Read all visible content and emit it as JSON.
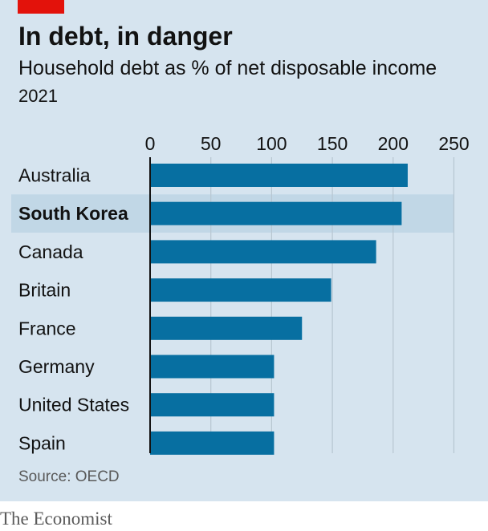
{
  "header": {
    "title": "In debt, in danger",
    "subtitle": "Household debt as % of net disposable income",
    "year": "2021"
  },
  "footer": {
    "source": "Source: OECD",
    "brand": "The Economist"
  },
  "colors": {
    "background": "#d6e4ef",
    "bar": "#076fa1",
    "highlight_band": "#c1d7e6",
    "accent_tag": "#e3120b",
    "gridline": "#b7c6d1",
    "axis": "#121212"
  },
  "chart_data": {
    "type": "bar",
    "orientation": "horizontal",
    "title": "In debt, in danger",
    "subtitle": "Household debt as % of net disposable income",
    "xlabel": "",
    "ylabel": "",
    "categories": [
      "Australia",
      "South Korea",
      "Canada",
      "Britain",
      "France",
      "Germany",
      "United States",
      "Spain"
    ],
    "values": [
      212,
      207,
      186,
      149,
      125,
      102,
      102,
      102
    ],
    "highlighted": "South Korea",
    "xlim": [
      0,
      250
    ],
    "xticks": [
      0,
      50,
      100,
      150,
      200,
      250
    ],
    "grid": true,
    "axis_position": "top"
  }
}
